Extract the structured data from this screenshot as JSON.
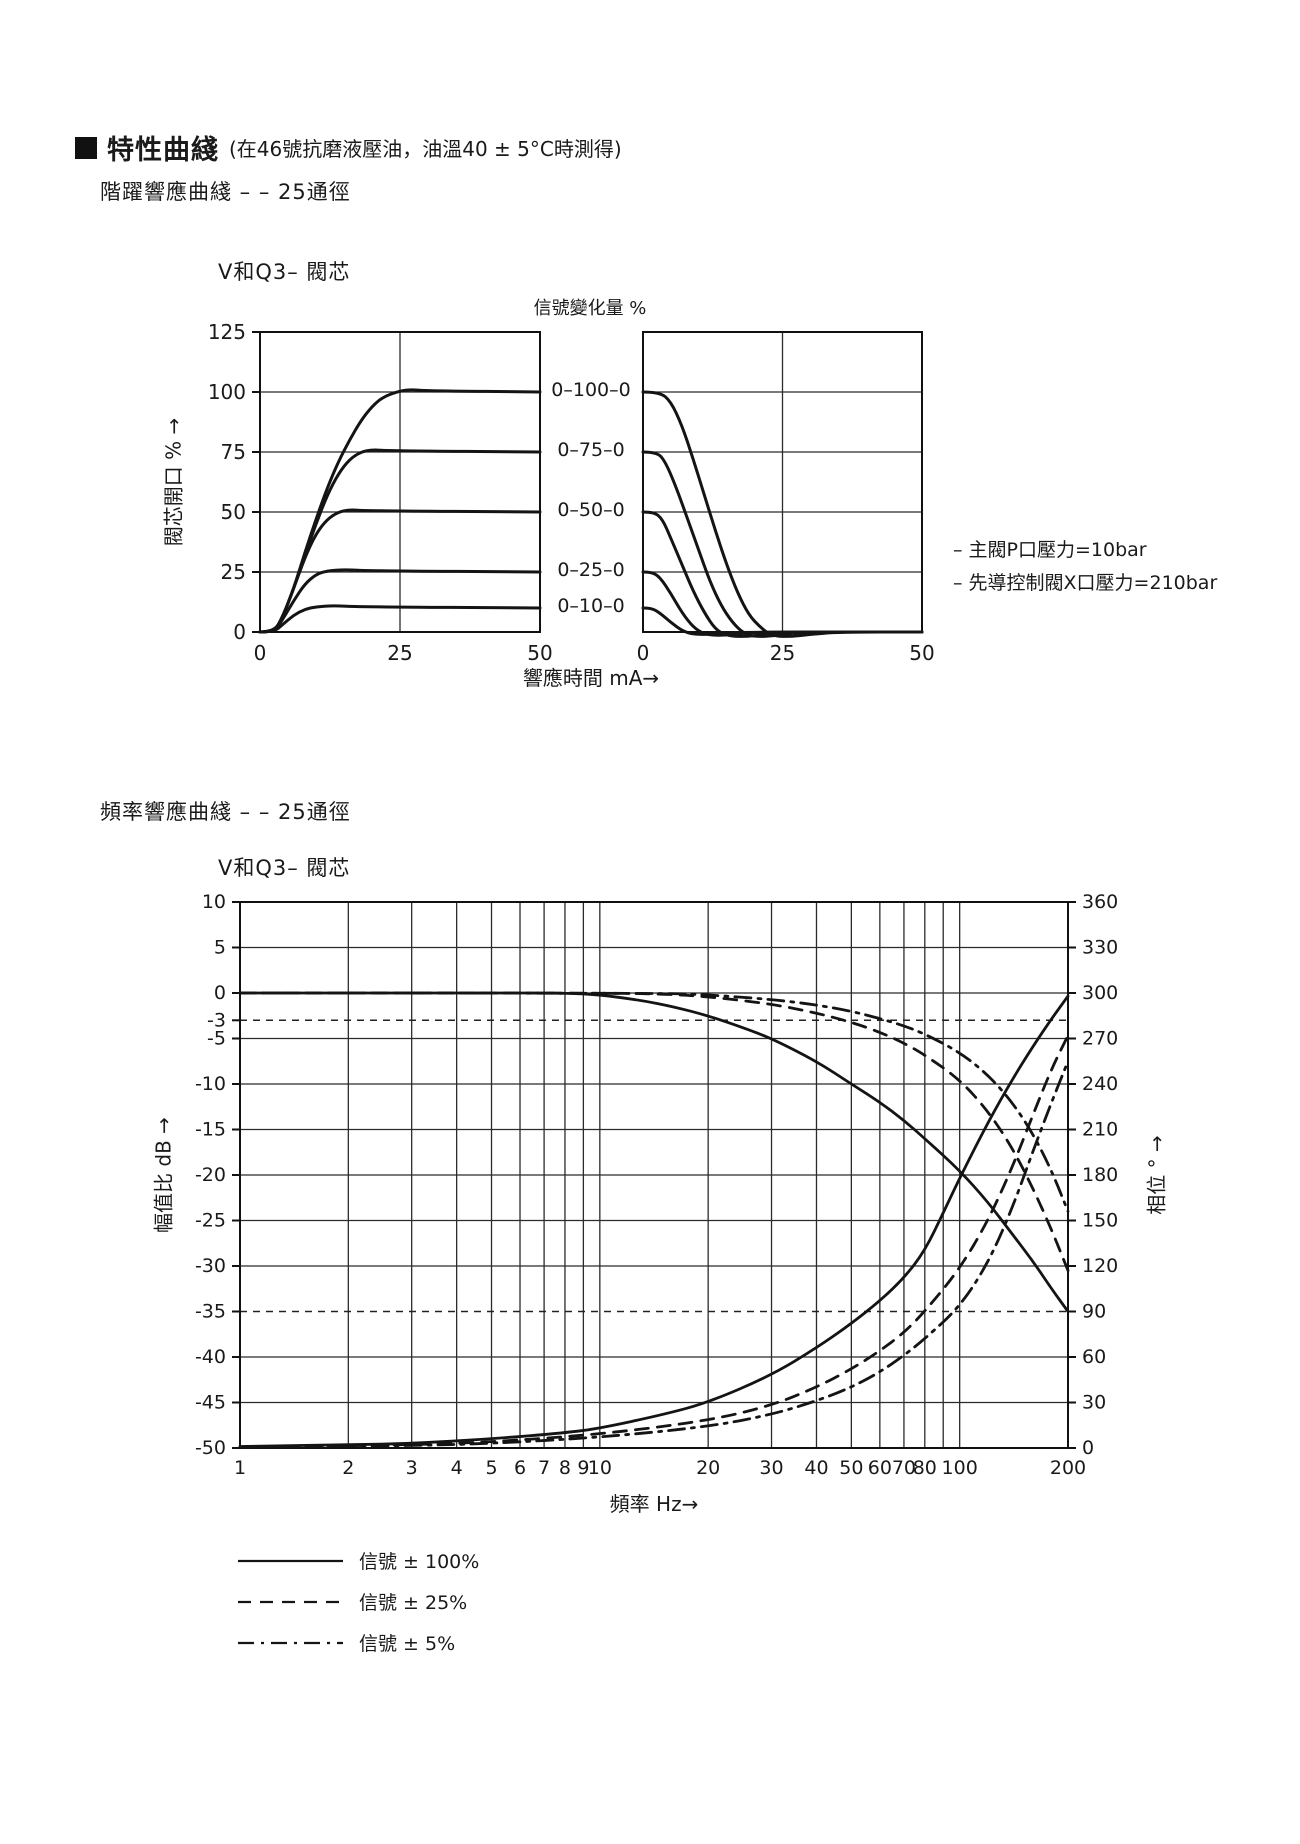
{
  "colors": {
    "ink": "#141414",
    "grid": "#2b2b2b",
    "bg": "#ffffff"
  },
  "page": {
    "title": "特性曲綫",
    "title_note": "(在46號抗磨液壓油，油溫40 ± 5°C時測得)"
  },
  "step_section": {
    "subtitle": "階躍響應曲綫 – – 25通徑",
    "chart_title": "V和Q3– 閥芯",
    "column_header": "信號變化量 %",
    "y_axis_label": "閥芯開口 % →",
    "x_axis_label": "響應時間 mA→",
    "signal_labels": [
      "0–100–0",
      "0–75–0",
      "0–50–0",
      "0–25–0",
      "0–10–0"
    ],
    "notes": [
      "– 主閥P口壓力=10bar",
      "– 先導控制閥X口壓力=210bar"
    ]
  },
  "freq_section": {
    "subtitle": "頻率響應曲綫 – – 25通徑",
    "chart_title": "V和Q3– 閥芯",
    "left_axis_label": "幅值比 dB →",
    "right_axis_label": "相位 ° →",
    "x_axis_label": "頻率 Hz→",
    "legend": [
      {
        "style": "solid",
        "label": "信號  ± 100%"
      },
      {
        "style": "dashed",
        "label": "信號  ± 25%"
      },
      {
        "style": "dashdot",
        "label": "信號  ± 5%"
      }
    ]
  },
  "chart_data": [
    {
      "id": "step_opening",
      "type": "line",
      "title": "V和Q3– 閥芯",
      "xlabel": "響應時間 mA→",
      "ylabel": "閥芯開口 % →",
      "xlim": [
        0,
        50
      ],
      "ylim": [
        0,
        125
      ],
      "xticks": [
        0,
        25,
        50
      ],
      "yticks": [
        0,
        25,
        50,
        75,
        100,
        125
      ],
      "series": [
        {
          "name": "0–100–0 開",
          "points": [
            [
              0,
              0
            ],
            [
              2.5,
              0
            ],
            [
              4,
              6
            ],
            [
              6,
              18
            ],
            [
              8,
              33
            ],
            [
              10,
              47
            ],
            [
              12,
              60
            ],
            [
              14,
              71
            ],
            [
              16,
              80
            ],
            [
              18,
              88
            ],
            [
              20,
              94
            ],
            [
              22,
              98
            ],
            [
              25,
              100.5
            ],
            [
              27,
              101
            ],
            [
              30,
              100.5
            ],
            [
              50,
              100
            ]
          ]
        },
        {
          "name": "0–75–0 開",
          "points": [
            [
              0,
              0
            ],
            [
              2.5,
              0
            ],
            [
              4,
              6
            ],
            [
              6,
              18
            ],
            [
              8,
              32
            ],
            [
              10,
              45
            ],
            [
              12,
              57
            ],
            [
              14,
              66
            ],
            [
              16,
              72
            ],
            [
              18,
              75
            ],
            [
              20,
              76
            ],
            [
              23,
              75.5
            ],
            [
              50,
              75
            ]
          ]
        },
        {
          "name": "0–50–0 開",
          "points": [
            [
              0,
              0
            ],
            [
              2.5,
              0
            ],
            [
              4,
              6
            ],
            [
              6,
              18
            ],
            [
              8,
              31
            ],
            [
              10,
              41
            ],
            [
              12,
              47
            ],
            [
              14,
              50
            ],
            [
              16,
              51
            ],
            [
              19,
              50.5
            ],
            [
              50,
              50
            ]
          ]
        },
        {
          "name": "0–25–0 開",
          "points": [
            [
              0,
              0
            ],
            [
              2.5,
              0
            ],
            [
              4,
              5
            ],
            [
              6,
              13
            ],
            [
              8,
              20
            ],
            [
              10,
              24
            ],
            [
              12,
              25.5
            ],
            [
              15,
              26
            ],
            [
              20,
              25.5
            ],
            [
              50,
              25
            ]
          ]
        },
        {
          "name": "0–10–0 開",
          "points": [
            [
              0,
              0
            ],
            [
              2.5,
              0
            ],
            [
              4,
              3
            ],
            [
              6,
              7
            ],
            [
              8,
              9.5
            ],
            [
              10,
              10.5
            ],
            [
              13,
              11
            ],
            [
              18,
              10.5
            ],
            [
              50,
              10
            ]
          ]
        }
      ]
    },
    {
      "id": "step_closing",
      "type": "line",
      "title": "V和Q3– 閥芯",
      "xlabel": "響應時間 mA→",
      "xlim": [
        0,
        50
      ],
      "ylim": [
        0,
        125
      ],
      "xticks": [
        0,
        25,
        50
      ],
      "yticks": [
        0,
        25,
        50,
        75,
        100,
        125
      ],
      "series": [
        {
          "name": "0–100–0 關",
          "points": [
            [
              0,
              100
            ],
            [
              3,
              100
            ],
            [
              5,
              96
            ],
            [
              7,
              86
            ],
            [
              9,
              72
            ],
            [
              11,
              57
            ],
            [
              13,
              42
            ],
            [
              15,
              28
            ],
            [
              17,
              16
            ],
            [
              19,
              7
            ],
            [
              21,
              2
            ],
            [
              23,
              -1.5
            ],
            [
              26,
              -2
            ],
            [
              30,
              -1
            ],
            [
              35,
              0
            ],
            [
              50,
              0
            ]
          ]
        },
        {
          "name": "0–75–0 關",
          "points": [
            [
              0,
              75
            ],
            [
              2.5,
              75
            ],
            [
              4,
              71
            ],
            [
              6,
              60
            ],
            [
              8,
              47
            ],
            [
              10,
              34
            ],
            [
              12,
              21
            ],
            [
              14,
              11
            ],
            [
              16,
              4
            ],
            [
              18,
              -0.5
            ],
            [
              20,
              -2
            ],
            [
              24,
              -1.5
            ],
            [
              28,
              0
            ],
            [
              50,
              0
            ]
          ]
        },
        {
          "name": "0–50–0 關",
          "points": [
            [
              0,
              50
            ],
            [
              2,
              50
            ],
            [
              3.5,
              47
            ],
            [
              5,
              39
            ],
            [
              7,
              28
            ],
            [
              9,
              17
            ],
            [
              11,
              8
            ],
            [
              13,
              1
            ],
            [
              15,
              -1.5
            ],
            [
              18,
              -2
            ],
            [
              22,
              -1
            ],
            [
              26,
              0
            ],
            [
              50,
              0
            ]
          ]
        },
        {
          "name": "0–25–0 關",
          "points": [
            [
              0,
              25
            ],
            [
              1.5,
              25
            ],
            [
              3,
              23
            ],
            [
              5,
              16
            ],
            [
              7,
              8
            ],
            [
              9,
              2
            ],
            [
              11,
              -1
            ],
            [
              14,
              -1.5
            ],
            [
              18,
              -0.5
            ],
            [
              22,
              0
            ],
            [
              50,
              0
            ]
          ]
        },
        {
          "name": "0–10–0 關",
          "points": [
            [
              0,
              10
            ],
            [
              1.5,
              10
            ],
            [
              3,
              8
            ],
            [
              5,
              4
            ],
            [
              7,
              0.5
            ],
            [
              9,
              -1
            ],
            [
              12,
              -1
            ],
            [
              16,
              0
            ],
            [
              50,
              0
            ]
          ]
        }
      ]
    },
    {
      "id": "bode",
      "type": "line",
      "title": "V和Q3– 閥芯",
      "xlabel": "頻率 Hz→",
      "x_scale": "log",
      "xlim": [
        1,
        200
      ],
      "amp_ylim": [
        -50,
        10
      ],
      "phase_ylim": [
        0,
        360
      ],
      "amp_ticks": [
        10,
        5,
        0,
        -3,
        -5,
        -10,
        -15,
        -20,
        -25,
        -30,
        -35,
        -40,
        -45,
        -50
      ],
      "amp_solid_gridlines": [
        5,
        0,
        -5,
        -10,
        -15,
        -20,
        -25,
        -30,
        -40,
        -45
      ],
      "amp_dashed_gridlines": [
        -3,
        -35
      ],
      "phase_ticks": [
        360,
        330,
        300,
        270,
        240,
        210,
        180,
        150,
        120,
        90,
        60,
        30,
        0
      ],
      "x_gridlines": [
        2,
        3,
        4,
        5,
        6,
        7,
        8,
        9,
        10,
        20,
        30,
        40,
        50,
        60,
        70,
        80,
        90,
        100
      ],
      "x_tick_labels": [
        1,
        2,
        3,
        4,
        5,
        6,
        7,
        8,
        9,
        10,
        20,
        30,
        40,
        50,
        60,
        70,
        80,
        100,
        200
      ],
      "series": [
        {
          "name": "幅值 ±100%",
          "axis": "amp",
          "style": "solid",
          "points": [
            [
              1,
              0
            ],
            [
              5,
              0
            ],
            [
              8,
              0
            ],
            [
              10,
              -0.2
            ],
            [
              13,
              -0.8
            ],
            [
              16,
              -1.5
            ],
            [
              20,
              -2.5
            ],
            [
              25,
              -3.8
            ],
            [
              30,
              -5
            ],
            [
              40,
              -7.5
            ],
            [
              50,
              -10
            ],
            [
              60,
              -12
            ],
            [
              70,
              -14
            ],
            [
              80,
              -16
            ],
            [
              100,
              -19.5
            ],
            [
              120,
              -23
            ],
            [
              140,
              -26.5
            ],
            [
              160,
              -29.5
            ],
            [
              180,
              -32.5
            ],
            [
              200,
              -35
            ]
          ]
        },
        {
          "name": "幅值 ±25%",
          "axis": "amp",
          "style": "dashed",
          "points": [
            [
              1,
              0
            ],
            [
              10,
              0
            ],
            [
              15,
              -0.1
            ],
            [
              20,
              -0.4
            ],
            [
              30,
              -1.2
            ],
            [
              40,
              -2.2
            ],
            [
              50,
              -3.2
            ],
            [
              60,
              -4.3
            ],
            [
              70,
              -5.5
            ],
            [
              80,
              -6.8
            ],
            [
              100,
              -9.5
            ],
            [
              120,
              -13
            ],
            [
              140,
              -17
            ],
            [
              160,
              -21.5
            ],
            [
              180,
              -26
            ],
            [
              200,
              -30.5
            ]
          ]
        },
        {
          "name": "幅值 ±5%",
          "axis": "amp",
          "style": "dashdot",
          "points": [
            [
              1,
              0
            ],
            [
              15,
              0
            ],
            [
              20,
              -0.2
            ],
            [
              30,
              -0.7
            ],
            [
              40,
              -1.3
            ],
            [
              50,
              -2
            ],
            [
              60,
              -2.8
            ],
            [
              70,
              -3.6
            ],
            [
              80,
              -4.5
            ],
            [
              100,
              -6.5
            ],
            [
              120,
              -9
            ],
            [
              140,
              -12
            ],
            [
              160,
              -15.5
            ],
            [
              180,
              -19.5
            ],
            [
              200,
              -24
            ]
          ]
        },
        {
          "name": "相位 ±100%",
          "axis": "phase",
          "style": "solid",
          "points": [
            [
              1,
              1
            ],
            [
              2,
              2
            ],
            [
              3,
              3
            ],
            [
              5,
              6
            ],
            [
              8,
              10
            ],
            [
              10,
              13
            ],
            [
              15,
              22
            ],
            [
              20,
              30
            ],
            [
              30,
              48
            ],
            [
              40,
              66
            ],
            [
              50,
              82
            ],
            [
              60,
              97
            ],
            [
              70,
              112
            ],
            [
              80,
              130
            ],
            [
              90,
              155
            ],
            [
              100,
              178
            ],
            [
              120,
              215
            ],
            [
              140,
              243
            ],
            [
              160,
              265
            ],
            [
              180,
              283
            ],
            [
              200,
              298
            ]
          ]
        },
        {
          "name": "相位 ±25%",
          "axis": "phase",
          "style": "dashed",
          "points": [
            [
              1,
              0.5
            ],
            [
              3,
              2
            ],
            [
              5,
              4
            ],
            [
              10,
              9
            ],
            [
              20,
              18
            ],
            [
              30,
              28
            ],
            [
              40,
              40
            ],
            [
              50,
              52
            ],
            [
              60,
              64
            ],
            [
              70,
              76
            ],
            [
              80,
              90
            ],
            [
              100,
              118
            ],
            [
              120,
              150
            ],
            [
              140,
              185
            ],
            [
              160,
              220
            ],
            [
              180,
              250
            ],
            [
              200,
              272
            ]
          ]
        },
        {
          "name": "相位 ±5%",
          "axis": "phase",
          "style": "dashdot",
          "points": [
            [
              1,
              0.5
            ],
            [
              3,
              1.5
            ],
            [
              5,
              3
            ],
            [
              10,
              7
            ],
            [
              20,
              14
            ],
            [
              30,
              22
            ],
            [
              40,
              31
            ],
            [
              50,
              40
            ],
            [
              60,
              50
            ],
            [
              70,
              61
            ],
            [
              80,
              72
            ],
            [
              100,
              93
            ],
            [
              120,
              122
            ],
            [
              140,
              158
            ],
            [
              160,
              196
            ],
            [
              180,
              228
            ],
            [
              200,
              255
            ]
          ]
        }
      ]
    }
  ]
}
